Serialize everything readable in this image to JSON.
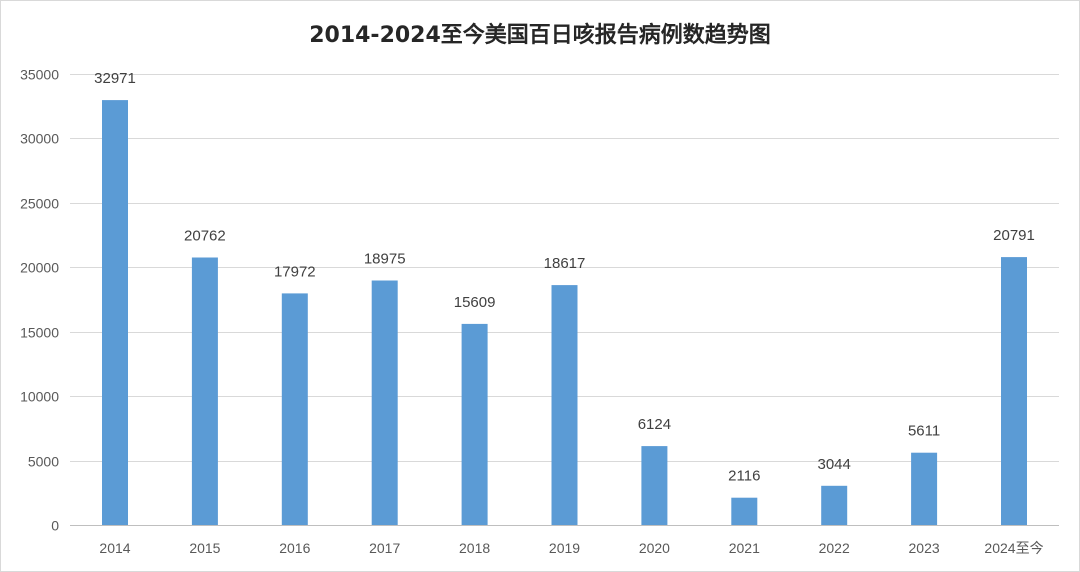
{
  "chart_data": {
    "type": "bar",
    "title": "2014-2024至今美国百日咳报告病例数趋势图",
    "categories": [
      "2014",
      "2015",
      "2016",
      "2017",
      "2018",
      "2019",
      "2020",
      "2021",
      "2022",
      "2023",
      "2024至今"
    ],
    "values": [
      32971,
      20762,
      17972,
      18975,
      15609,
      18617,
      6124,
      2116,
      3044,
      5611,
      20791
    ],
    "xlabel": "",
    "ylabel": "",
    "ylim": [
      0,
      35000
    ],
    "yticks": [
      0,
      5000,
      10000,
      15000,
      20000,
      25000,
      30000,
      35000
    ],
    "grid": true,
    "legend": "none",
    "bar_color": "#5b9bd5"
  }
}
